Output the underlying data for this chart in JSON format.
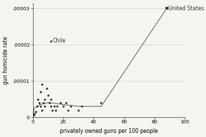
{
  "xlabel": "privately owned guns per 100 people",
  "ylabel": "gun homicide rate",
  "xlim": [
    0,
    100
  ],
  "ylim": [
    0,
    3.15e-05
  ],
  "yticks": [
    0,
    1e-05,
    2e-05,
    3e-05
  ],
  "ytick_labels": [
    "0",
    ".00001",
    ".00002",
    ".00003"
  ],
  "xticks": [
    0,
    20,
    40,
    60,
    80,
    100
  ],
  "scatter_points": [
    [
      0.5,
      5e-07
    ],
    [
      1,
      1e-06
    ],
    [
      2,
      1.5e-06
    ],
    [
      3,
      3e-06
    ],
    [
      3.5,
      5e-06
    ],
    [
      4,
      4e-06
    ],
    [
      5,
      3e-06
    ],
    [
      5,
      7e-06
    ],
    [
      6,
      2e-06
    ],
    [
      6,
      9e-06
    ],
    [
      7,
      4e-06
    ],
    [
      8,
      3e-06
    ],
    [
      8,
      5e-06
    ],
    [
      9,
      8e-06
    ],
    [
      10,
      6e-06
    ],
    [
      11,
      4e-06
    ],
    [
      12,
      3e-06
    ],
    [
      12,
      5e-06
    ],
    [
      13,
      2e-06
    ],
    [
      14,
      3e-06
    ],
    [
      15,
      2e-06
    ],
    [
      16,
      3e-06
    ],
    [
      18,
      4e-06
    ],
    [
      20,
      3e-06
    ],
    [
      22,
      4e-06
    ],
    [
      23,
      2e-06
    ],
    [
      25,
      3e-06
    ],
    [
      30,
      2e-06
    ],
    [
      32,
      3e-06
    ],
    [
      45,
      4e-06
    ],
    [
      88,
      3e-05
    ]
  ],
  "chile_point": [
    12,
    2.1e-05
  ],
  "us_point": [
    88,
    3e-05
  ],
  "fit_line_x": [
    0,
    1,
    5,
    10,
    15,
    20,
    30,
    45,
    88
  ],
  "fit_line_y": [
    0.0,
    2.5e-06,
    3.5e-06,
    4e-06,
    3.8e-06,
    3.5e-06,
    3e-06,
    3e-06,
    3e-05
  ],
  "marker_color": "#3a3a3a",
  "line_color": "#555555",
  "bg_color": "#f5f5f0",
  "label_fontsize": 5.5,
  "tick_fontsize": 5.0
}
